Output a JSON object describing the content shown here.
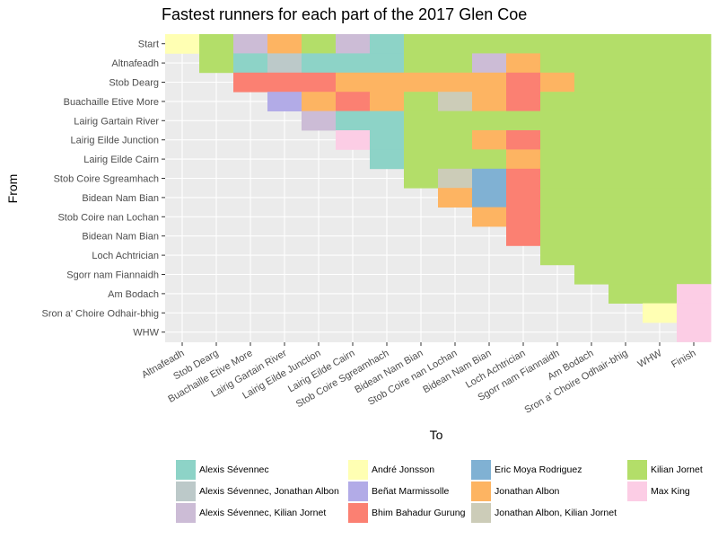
{
  "chart_data": {
    "type": "heatmap",
    "title": "Fastest runners for each part of the 2017 Glen Coe",
    "xlabel": "To",
    "ylabel": "From",
    "grid": true,
    "legend_position": "bottom",
    "x_categories": [
      "Altnafeadh",
      "Stob Dearg",
      "Buachaille Etive More",
      "Lairig Gartain River",
      "Lairig Eilde Junction",
      "Lairig Eilde Cairn",
      "Stob Coire Sgreamhach",
      "Bidean Nam Bian",
      "Stob Coire nan Lochan",
      "Bidean Nam Bian",
      "Loch Achtrician",
      "Sgorr nam Fiannaidh",
      "Am Bodach",
      "Sron a' Choire Odhair-bhig",
      "WHW",
      "Finish"
    ],
    "y_categories": [
      "Start",
      "Altnafeadh",
      "Stob Dearg",
      "Buachaille Etive More",
      "Lairig Gartain River",
      "Lairig Eilde Junction",
      "Lairig Eilde Cairn",
      "Stob Coire Sgreamhach",
      "Bidean Nam Bian",
      "Stob Coire nan Lochan",
      "Bidean Nam Bian",
      "Loch Achtrician",
      "Sgorr nam Fiannaidh",
      "Am Bodach",
      "Sron a' Choire Odhair-bhig",
      "WHW"
    ],
    "runners": [
      {
        "name": "Alexis Sévennec",
        "color": "#8dd3c7"
      },
      {
        "name": "Alexis Sévennec, Jonathan Albon",
        "color": "#bcc9c9"
      },
      {
        "name": "Alexis Sévennec, Kilian Jornet",
        "color": "#ccbcd6"
      },
      {
        "name": "André Jonsson",
        "color": "#ffffb3"
      },
      {
        "name": "Beñat Marmissolle",
        "color": "#b2abe7"
      },
      {
        "name": "Bhim Bahadur Gurung",
        "color": "#fb8072"
      },
      {
        "name": "Eric Moya Rodriguez",
        "color": "#80b1d3"
      },
      {
        "name": "Jonathan Albon",
        "color": "#fdb462"
      },
      {
        "name": "Jonathan Albon, Kilian Jornet",
        "color": "#ccccb8"
      },
      {
        "name": "Kilian Jornet",
        "color": "#b3de69"
      },
      {
        "name": "Max King",
        "color": "#fccde5"
      }
    ],
    "cells": [
      "3 9 2 7 9 2 0 9 9 9 9 9 9 9 9 9",
      "- 9 0 1 0 0 0 9 9 2 7 9 9 9 9 9",
      "- - 5 5 5 7 7 7 7 7 5 7 9 9 9 9",
      "- - - 4 7 5 7 9 8 7 5 9 9 9 9 9",
      "- - - - 2 0 0 9 9 9 9 9 9 9 9 9",
      "- - - - - 10 0 9 9 7 5 9 9 9 9 9",
      "- - - - - - 0 9 9 9 7 9 9 9 9 9",
      "- - - - - - - 9 8 6 5 9 9 9 9 9",
      "- - - - - - - - 7 6 5 9 9 9 9 9",
      "- - - - - - - - - 7 5 9 9 9 9 9",
      "- - - - - - - - - - 5 9 9 9 9 9",
      "- - - - - - - - - - - 9 9 9 9 9",
      "- - - - - - - - - - - - 9 9 9 9",
      "- - - - - - - - - - - - - 9 9 10",
      "- - - - - - - - - - - - - - 3 10",
      "- - - - - - - - - - - - - - - 10"
    ]
  }
}
